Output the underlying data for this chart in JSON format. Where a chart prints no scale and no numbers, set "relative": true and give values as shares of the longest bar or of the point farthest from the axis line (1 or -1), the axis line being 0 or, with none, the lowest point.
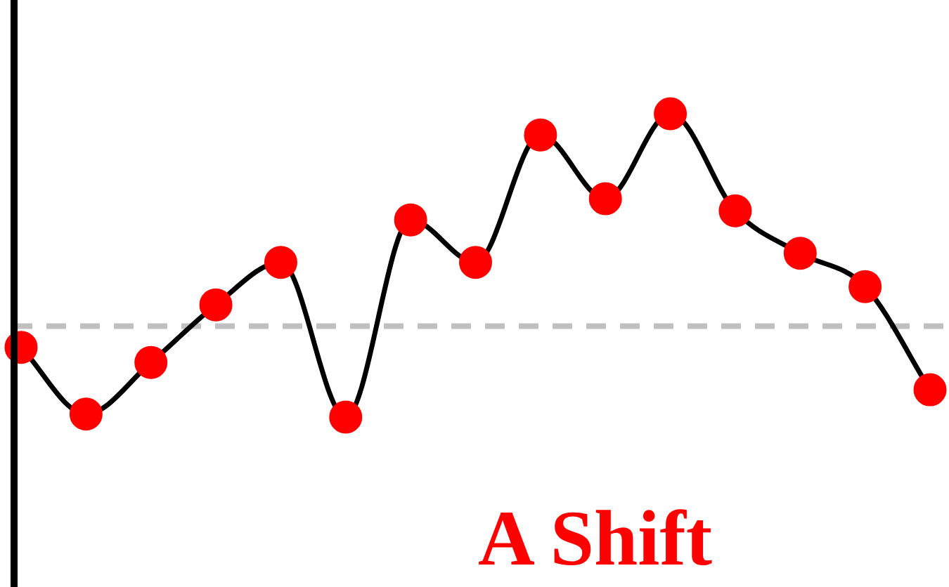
{
  "chart_data": {
    "type": "line",
    "relative": true,
    "categories": [
      null,
      null,
      null,
      null,
      null,
      null,
      null,
      null,
      null,
      null,
      null,
      null,
      null,
      null,
      null
    ],
    "series": [
      {
        "color": "#000000",
        "values": [
          0.23,
          0.01,
          0.18,
          0.37,
          0.51,
          0,
          0.65,
          0.51,
          0.93,
          0.72,
          1,
          0.68,
          0.54,
          0.43,
          0.09
        ]
      }
    ],
    "marker": "circle",
    "line_style": "solid",
    "legend": false,
    "tick_labels": false,
    "ref_lines": [
      {
        "axis": "y",
        "value": 0.3,
        "color": "#c0c0c0",
        "line_style": "dashed"
      }
    ],
    "annotations": [
      "A Shift"
    ]
  }
}
